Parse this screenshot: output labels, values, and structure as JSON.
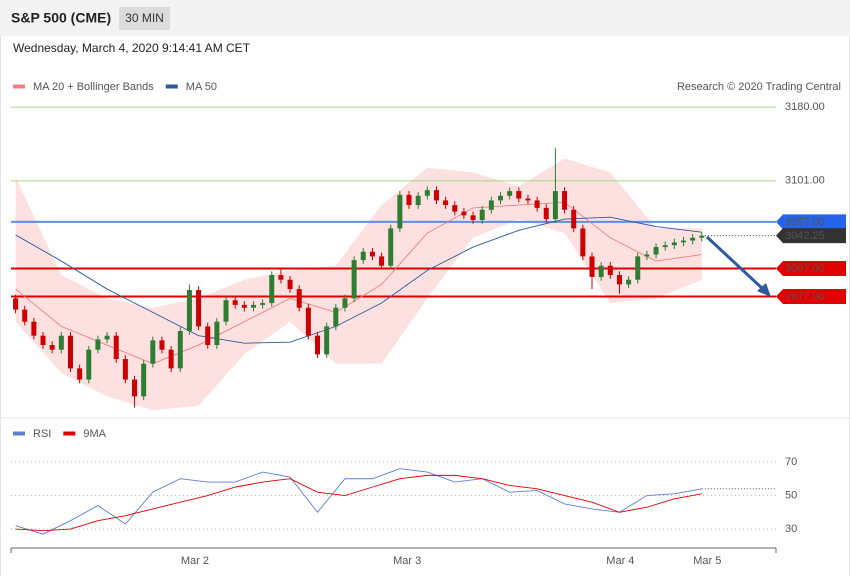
{
  "header": {
    "symbol": "S&P 500 (CME)",
    "timeframe": "30 MIN",
    "timestamp": "Wednesday, March 4, 2020 9:14:41 AM CET",
    "credit": "Research © 2020 Trading Central"
  },
  "chart_data": [
    {
      "type": "candlestick",
      "xlim": [
        -0.5,
        83
      ],
      "ylim": [
        2850,
        3193
      ],
      "up_color": "#2e7d32",
      "down_color": "#cc0000",
      "open": [
        2975,
        2963,
        2950,
        2935,
        2925,
        2920,
        2935,
        2900,
        2888,
        2920,
        2931,
        2935,
        2910,
        2888,
        2870,
        2905,
        2930,
        2920,
        2900,
        2940,
        2984,
        2945,
        2925,
        2950,
        2973,
        2968,
        2965,
        2968,
        2970,
        3000,
        2995,
        2985,
        2965,
        2935,
        2915,
        2945,
        2965,
        2975,
        3016,
        3025,
        3020,
        3010,
        3050,
        3086,
        3075,
        3085,
        3091,
        3080,
        3075,
        3068,
        3064,
        3059,
        3070,
        3080,
        3085,
        3090,
        3082,
        3080,
        3072,
        3060,
        3090,
        3070,
        3050,
        3020,
        2998,
        3010,
        3000,
        2990,
        2995,
        3020,
        3022,
        3030,
        3032,
        3035,
        3037,
        3040
      ],
      "high": [
        2979,
        2967,
        2954,
        2939,
        2929,
        2939,
        2939,
        2904,
        2924,
        2935,
        2939,
        2939,
        2914,
        2892,
        2909,
        2934,
        2934,
        2924,
        2944,
        2990,
        2988,
        2949,
        2954,
        2977,
        2977,
        2972,
        2972,
        2974,
        3004,
        3006,
        2999,
        2989,
        2969,
        2939,
        2949,
        2969,
        2979,
        3020,
        3029,
        3029,
        3024,
        3054,
        3090,
        3090,
        3089,
        3095,
        3095,
        3084,
        3079,
        3072,
        3068,
        3074,
        3084,
        3089,
        3094,
        3094,
        3086,
        3084,
        3076,
        3136,
        3094,
        3074,
        3054,
        3024,
        3014,
        3014,
        3004,
        2999,
        3024,
        3026,
        3034,
        3036,
        3039,
        3041,
        3044,
        3046
      ],
      "low": [
        2959,
        2946,
        2931,
        2921,
        2916,
        2916,
        2896,
        2884,
        2884,
        2916,
        2927,
        2906,
        2884,
        2858,
        2866,
        2901,
        2916,
        2896,
        2896,
        2936,
        2941,
        2921,
        2921,
        2946,
        2964,
        2961,
        2961,
        2964,
        2966,
        2991,
        2981,
        2961,
        2931,
        2911,
        2911,
        2941,
        2961,
        2971,
        3012,
        3016,
        3006,
        3006,
        3046,
        3071,
        3071,
        3081,
        3076,
        3071,
        3064,
        3060,
        3055,
        3055,
        3066,
        3076,
        3081,
        3078,
        3076,
        3068,
        3056,
        3056,
        3066,
        3046,
        3016,
        2985,
        2994,
        2996,
        2980,
        2986,
        2991,
        3016,
        3018,
        3026,
        3028,
        3031,
        3033,
        3036
      ],
      "close": [
        2963,
        2950,
        2935,
        2925,
        2920,
        2935,
        2900,
        2888,
        2920,
        2931,
        2935,
        2910,
        2888,
        2870,
        2905,
        2930,
        2920,
        2900,
        2940,
        2984,
        2945,
        2925,
        2950,
        2973,
        2968,
        2965,
        2968,
        2970,
        3000,
        2995,
        2985,
        2965,
        2935,
        2915,
        2945,
        2965,
        2975,
        3016,
        3025,
        3020,
        3010,
        3050,
        3086,
        3075,
        3085,
        3091,
        3080,
        3075,
        3068,
        3064,
        3059,
        3070,
        3080,
        3085,
        3090,
        3082,
        3080,
        3072,
        3060,
        3090,
        3070,
        3050,
        3020,
        2998,
        3010,
        3000,
        2990,
        2995,
        3020,
        3022,
        3030,
        3032,
        3035,
        3037,
        3040,
        3042.25
      ],
      "overlays": [
        {
          "name": "MA 20 + Bollinger Bands",
          "color": "#f08080",
          "band_color": "#fde0e0",
          "x": [
            0,
            5,
            10,
            15,
            20,
            25,
            30,
            35,
            40,
            45,
            50,
            55,
            60,
            65,
            70,
            75
          ],
          "values": [
            2985,
            2945,
            2925,
            2905,
            2925,
            2950,
            2975,
            2960,
            2990,
            3045,
            3072,
            3075,
            3078,
            3040,
            3015,
            3022
          ],
          "upper": [
            3105,
            3000,
            2975,
            2965,
            2975,
            2995,
            3005,
            3010,
            3075,
            3115,
            3110,
            3095,
            3125,
            3110,
            3050,
            3050
          ],
          "lower": [
            2950,
            2895,
            2870,
            2855,
            2860,
            2915,
            2950,
            2905,
            2905,
            2975,
            3040,
            3060,
            3045,
            2970,
            2975,
            2995
          ]
        },
        {
          "name": "MA 50",
          "color": "#2d5a9e",
          "x": [
            0,
            5,
            10,
            15,
            20,
            25,
            30,
            35,
            40,
            45,
            50,
            55,
            60,
            65,
            70,
            75
          ],
          "values": [
            3043,
            3015,
            2985,
            2960,
            2935,
            2927,
            2928,
            2945,
            2970,
            3005,
            3030,
            3048,
            3060,
            3062,
            3052,
            3046
          ]
        }
      ],
      "levels": [
        {
          "value": 3180,
          "label": "3180.00",
          "color": "#a8d48a",
          "text_color": "#5a9e00"
        },
        {
          "value": 3101,
          "label": "3101.00",
          "color": "#a8d48a",
          "text_color": "#5a9e00"
        },
        {
          "value": 3057,
          "label": "3057.00",
          "color": "#5b8def",
          "box": "#2563eb"
        },
        {
          "value": 3007,
          "label": "3007.00",
          "color": "#dd0000",
          "box": "#e00000"
        },
        {
          "value": 2977,
          "label": "2977.00",
          "color": "#dd0000",
          "box": "#e00000"
        }
      ],
      "last_box": "#333333"
    },
    {
      "type": "line",
      "xlim": [
        -0.5,
        83
      ],
      "ylim": [
        18.7,
        83.1
      ],
      "yticks": [
        30,
        50,
        70
      ],
      "xticks": [
        {
          "value": 19.6,
          "label": "Mar 2"
        },
        {
          "value": 42.8,
          "label": "Mar 3"
        },
        {
          "value": 66.1,
          "label": "Mar 4"
        },
        {
          "value": 75.6,
          "label": "Mar 5"
        }
      ],
      "series": [
        {
          "name": "RSI",
          "color": "#5b7fd6",
          "x": [
            0,
            3,
            6,
            9,
            12,
            15,
            18,
            21,
            24,
            27,
            30,
            33,
            36,
            39,
            42,
            45,
            48,
            51,
            54,
            57,
            60,
            63,
            66,
            69,
            72,
            75
          ],
          "values": [
            32,
            27,
            35,
            44,
            33,
            52,
            60,
            58,
            58,
            64,
            61,
            40,
            60,
            60,
            66,
            64,
            58,
            60,
            52,
            53,
            45,
            42,
            40,
            50,
            51,
            54
          ]
        },
        {
          "name": "9MA",
          "color": "#e00000",
          "x": [
            0,
            3,
            6,
            9,
            12,
            15,
            18,
            21,
            24,
            27,
            30,
            33,
            36,
            39,
            42,
            45,
            48,
            51,
            54,
            57,
            60,
            63,
            66,
            69,
            72,
            75
          ],
          "values": [
            30,
            29,
            30,
            35,
            38,
            42,
            46,
            50,
            55,
            58,
            60,
            52,
            50,
            55,
            60,
            62,
            62,
            60,
            56,
            54,
            50,
            46,
            40,
            43,
            48,
            51
          ]
        }
      ]
    }
  ]
}
